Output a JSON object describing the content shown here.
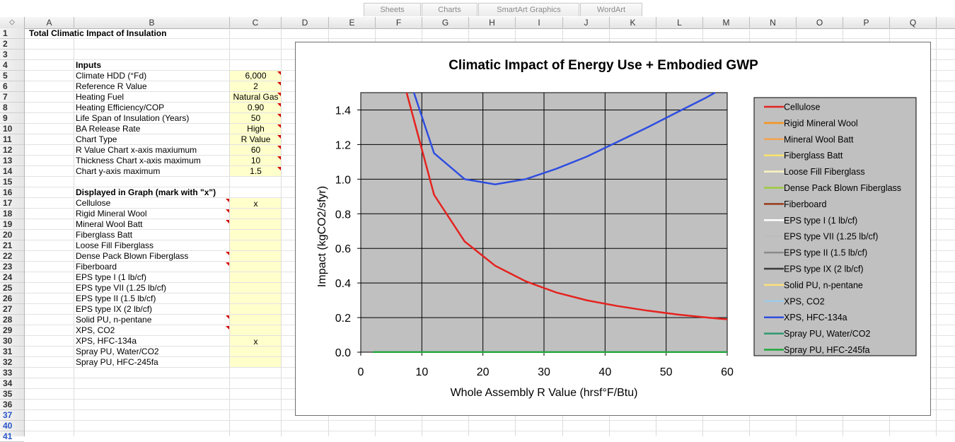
{
  "ribbon": {
    "tabs": [
      "Sheets",
      "Charts",
      "SmartArt Graphics",
      "WordArt"
    ]
  },
  "corner_label": "◇",
  "columns": [
    "A",
    "B",
    "C",
    "D",
    "E",
    "F",
    "G",
    "H",
    "I",
    "J",
    "K",
    "L",
    "M",
    "N",
    "O",
    "P",
    "Q"
  ],
  "rows": [
    "1",
    "2",
    "3",
    "4",
    "5",
    "6",
    "7",
    "8",
    "9",
    "10",
    "11",
    "12",
    "13",
    "14",
    "15",
    "16",
    "17",
    "18",
    "19",
    "20",
    "21",
    "22",
    "23",
    "24",
    "25",
    "26",
    "27",
    "28",
    "29",
    "30",
    "31",
    "32",
    "33",
    "34",
    "35",
    "36",
    "37",
    "40",
    "41"
  ],
  "sheet": {
    "title": "Total Climatic Impact of Insulation",
    "inputs_header": "Inputs",
    "inputs": [
      {
        "label": "Climate HDD (°Fd)",
        "value": "6,000"
      },
      {
        "label": "Reference R Value",
        "value": "2"
      },
      {
        "label": "Heating Fuel",
        "value": "Natural Gas"
      },
      {
        "label": "Heating Efficiency/COP",
        "value": "0.90"
      },
      {
        "label": "Life Span of Insulation (Years)",
        "value": "50"
      },
      {
        "label": "BA Release Rate",
        "value": "High"
      },
      {
        "label": "Chart Type",
        "value": "R Value"
      },
      {
        "label": "R Value Chart x-axis maxiumum",
        "value": "60"
      },
      {
        "label": "Thickness Chart x-axis maximum",
        "value": "10"
      },
      {
        "label": "Chart y-axis maximum",
        "value": "1.5"
      }
    ],
    "displayed_header": "Displayed in Graph (mark with \"x\")",
    "materials": [
      {
        "label": "Cellulose",
        "mark": "x"
      },
      {
        "label": "Rigid Mineral Wool",
        "mark": ""
      },
      {
        "label": "Mineral Wool Batt",
        "mark": ""
      },
      {
        "label": "Fiberglass Batt",
        "mark": ""
      },
      {
        "label": "Loose Fill Fiberglass",
        "mark": ""
      },
      {
        "label": "Dense Pack Blown Fiberglass",
        "mark": ""
      },
      {
        "label": "Fiberboard",
        "mark": ""
      },
      {
        "label": "EPS type I (1 lb/cf)",
        "mark": ""
      },
      {
        "label": "EPS type VII (1.25 lb/cf)",
        "mark": ""
      },
      {
        "label": "EPS type II (1.5 lb/cf)",
        "mark": ""
      },
      {
        "label": "EPS type IX (2 lb/cf)",
        "mark": ""
      },
      {
        "label": "Solid PU, n-pentane",
        "mark": ""
      },
      {
        "label": "XPS, CO2",
        "mark": ""
      },
      {
        "label": "XPS, HFC-134a",
        "mark": "x"
      },
      {
        "label": "Spray PU, Water/CO2",
        "mark": ""
      },
      {
        "label": "Spray PU, HFC-245fa",
        "mark": ""
      }
    ]
  },
  "colors": {
    "plot_bg": "#c0c0c0",
    "cell_yellow": "#ffffcc"
  },
  "chart_data": {
    "type": "line",
    "title": "Climatic Impact of Energy Use + Embodied GWP",
    "xlabel": "Whole Assembly R Value (hrsf°F/Btu)",
    "ylabel": "Impact  (kgCO2/sfyr)",
    "xlim": [
      0,
      60
    ],
    "ylim": [
      0,
      1.5
    ],
    "xticks": [
      "0",
      "10",
      "20",
      "30",
      "40",
      "50",
      "60"
    ],
    "yticks": [
      "0.0",
      "0.2",
      "0.4",
      "0.6",
      "0.8",
      "1.0",
      "1.2",
      "1.4"
    ],
    "grid": true,
    "legend_position": "right",
    "series": [
      {
        "name": "Cellulose",
        "color": "#e4231f",
        "points": [
          [
            7.5,
            1.5
          ],
          [
            12,
            0.91
          ],
          [
            17,
            0.64
          ],
          [
            22,
            0.5
          ],
          [
            27,
            0.41
          ],
          [
            32,
            0.345
          ],
          [
            37,
            0.3
          ],
          [
            42,
            0.267
          ],
          [
            47,
            0.24
          ],
          [
            52,
            0.217
          ],
          [
            57,
            0.199
          ],
          [
            60,
            0.19
          ]
        ]
      },
      {
        "name": "Rigid Mineral Wool",
        "color": "#f7941d",
        "points": []
      },
      {
        "name": "Mineral Wool Batt",
        "color": "#f4a24b",
        "points": []
      },
      {
        "name": "Fiberglass Batt",
        "color": "#fbe36a",
        "points": []
      },
      {
        "name": "Loose Fill Fiberglass",
        "color": "#fbf4c0",
        "points": []
      },
      {
        "name": "Dense Pack Blown Fiberglass",
        "color": "#9ccc3c",
        "points": []
      },
      {
        "name": "Fiberboard",
        "color": "#9a3b1a",
        "points": []
      },
      {
        "name": "EPS type I (1 lb/cf)",
        "color": "#ffffff",
        "points": []
      },
      {
        "name": "EPS type VII (1.25 lb/cf)",
        "color": "#bdbdbd",
        "points": []
      },
      {
        "name": "EPS type II (1.5 lb/cf)",
        "color": "#8a8a8a",
        "points": []
      },
      {
        "name": "EPS type IX (2 lb/cf)",
        "color": "#3a3a3a",
        "points": []
      },
      {
        "name": "Solid PU, n-pentane",
        "color": "#fde07a",
        "points": []
      },
      {
        "name": "XPS, CO2",
        "color": "#9ecae6",
        "points": []
      },
      {
        "name": "XPS, HFC-134a",
        "color": "#2f4ee0",
        "points": [
          [
            8.7,
            1.5
          ],
          [
            12,
            1.15
          ],
          [
            17,
            1.0
          ],
          [
            22,
            0.97
          ],
          [
            27,
            1.0
          ],
          [
            32,
            1.06
          ],
          [
            37,
            1.13
          ],
          [
            42,
            1.215
          ],
          [
            47,
            1.3
          ],
          [
            52,
            1.39
          ],
          [
            56.5,
            1.47
          ],
          [
            58,
            1.5
          ]
        ]
      },
      {
        "name": "Spray PU, Water/CO2",
        "color": "#2e9a6e",
        "points": [
          [
            2,
            0.0
          ],
          [
            60,
            0.0
          ]
        ]
      },
      {
        "name": "Spray PU, HFC-245fa",
        "color": "#1fa83a",
        "points": [
          [
            2,
            0.0
          ],
          [
            60,
            0.0
          ]
        ]
      }
    ]
  }
}
